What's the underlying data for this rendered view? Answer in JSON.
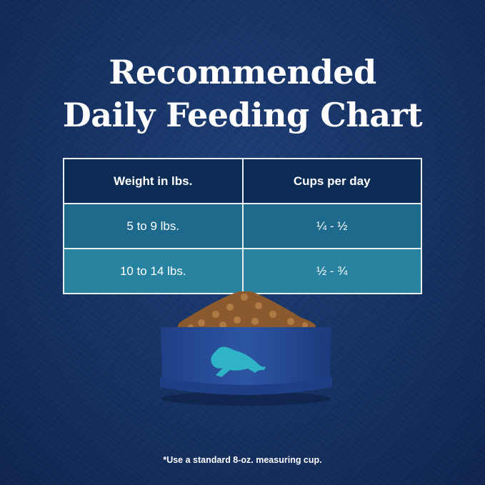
{
  "title": {
    "line1": "Recommended",
    "line2": "Daily Feeding Chart"
  },
  "table": {
    "headers": [
      "Weight in lbs.",
      "Cups per day"
    ],
    "rows": [
      [
        "5 to 9 lbs.",
        "¼ - ½"
      ],
      [
        "10 to 14 lbs.",
        "½ - ¾"
      ]
    ]
  },
  "image": {
    "subject": "food-bowl-with-bison-logo",
    "bowl_color": "#2a4f9a",
    "logo_color": "#2fb3c6"
  },
  "footnote": "*Use a standard 8-oz. measuring cup."
}
